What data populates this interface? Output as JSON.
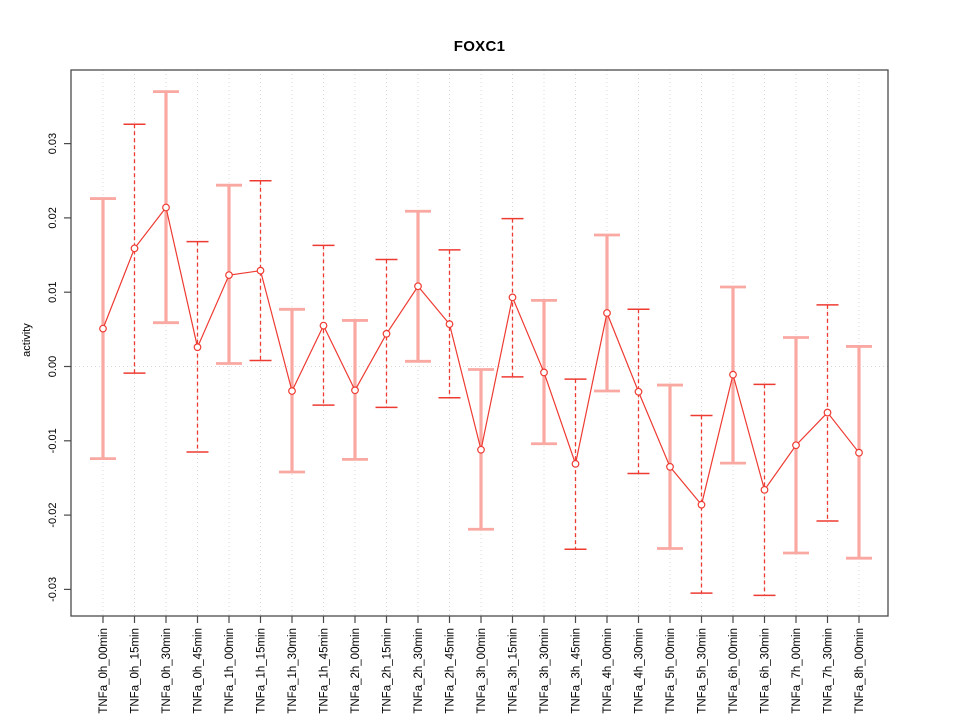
{
  "figure": {
    "background": "#ffffff"
  },
  "chart_data": {
    "type": "line",
    "title": "FOXC1",
    "xlabel": "",
    "ylabel": "activity",
    "legend": "none",
    "grid": "dotted vertical line at each category; dotted horizontal line at 0",
    "ylim": [
      -0.0336,
      0.0399
    ],
    "yticks": [
      0.03,
      0.02,
      0.01,
      0,
      -0.01,
      -0.02,
      -0.03
    ],
    "ytick_labels": [
      "0.03",
      "0.02",
      "0.01",
      "0.00",
      "-0.01",
      "-0.02",
      "-0.03"
    ],
    "categories": [
      "TNFa_0h_00min",
      "TNFa_0h_15min",
      "TNFa_0h_30min",
      "TNFa_0h_45min",
      "TNFa_1h_00min",
      "TNFa_1h_15min",
      "TNFa_1h_30min",
      "TNFa_1h_45min",
      "TNFa_2h_00min",
      "TNFa_2h_15min",
      "TNFa_2h_30min",
      "TNFa_2h_45min",
      "TNFa_3h_00min",
      "TNFa_3h_15min",
      "TNFa_3h_30min",
      "TNFa_3h_45min",
      "TNFa_4h_00min",
      "TNFa_4h_30min",
      "TNFa_5h_00min",
      "TNFa_5h_30min",
      "TNFa_6h_00min",
      "TNFa_6h_30min",
      "TNFa_7h_00min",
      "TNFa_7h_30min",
      "TNFa_8h_00min"
    ],
    "series": [
      {
        "name": "activity",
        "marker": "open-circle",
        "values": [
          0.0051,
          0.0159,
          0.0214,
          0.0026,
          0.0123,
          0.0129,
          -0.0033,
          0.0055,
          -0.0032,
          0.0044,
          0.0108,
          0.0057,
          -0.0112,
          0.0093,
          -0.0008,
          -0.0131,
          0.0072,
          -0.0034,
          -0.0135,
          -0.0186,
          -0.0011,
          -0.0166,
          -0.0106,
          -0.0062,
          -0.0116
        ],
        "lower": [
          -0.0124,
          -0.0009,
          0.0059,
          -0.0115,
          0.0004,
          0.0008,
          -0.0142,
          -0.0052,
          -0.0125,
          -0.0055,
          0.0007,
          -0.0042,
          -0.0219,
          -0.0014,
          -0.0104,
          -0.0246,
          -0.0033,
          -0.0144,
          -0.0245,
          -0.0305,
          -0.013,
          -0.0308,
          -0.0251,
          -0.0208,
          -0.0258
        ],
        "upper": [
          0.0226,
          0.0326,
          0.037,
          0.0168,
          0.0244,
          0.025,
          0.0077,
          0.0163,
          0.0062,
          0.0144,
          0.0209,
          0.0157,
          -0.0004,
          0.0199,
          0.0089,
          -0.0017,
          0.0177,
          0.0077,
          -0.0025,
          -0.0066,
          0.0107,
          -0.0024,
          0.0039,
          0.0083,
          0.0027
        ],
        "bar_style_pattern": "odd points solid thick pink, even points thin dashed red"
      }
    ],
    "colors": {
      "line": "#ee3b32",
      "marker_stroke": "#ee3b32",
      "thick_bar": "#f9a8a2",
      "grid": "#d8d8d8",
      "axis_box": "#4a4a4a",
      "text": "#000000"
    }
  }
}
